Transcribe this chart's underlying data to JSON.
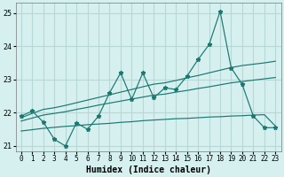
{
  "xlabel": "Humidex (Indice chaleur)",
  "background_color": "#d6efef",
  "grid_color": "#b8d8d8",
  "line_color": "#1a7870",
  "xlim": [
    -0.5,
    23.5
  ],
  "ylim": [
    20.85,
    25.3
  ],
  "yticks": [
    21,
    22,
    23,
    24,
    25
  ],
  "xticks": [
    0,
    1,
    2,
    3,
    4,
    5,
    6,
    7,
    8,
    9,
    10,
    11,
    12,
    13,
    14,
    15,
    16,
    17,
    18,
    19,
    20,
    21,
    22,
    23
  ],
  "x": [
    0,
    1,
    2,
    3,
    4,
    5,
    6,
    7,
    8,
    9,
    10,
    11,
    12,
    13,
    14,
    15,
    16,
    17,
    18,
    19,
    20,
    21,
    22,
    23
  ],
  "y_main": [
    21.9,
    22.05,
    21.72,
    21.2,
    21.0,
    21.7,
    21.5,
    21.9,
    22.6,
    23.2,
    22.4,
    23.2,
    22.45,
    22.75,
    22.7,
    23.1,
    23.6,
    24.05,
    25.05,
    23.35,
    22.85,
    21.9,
    21.55,
    21.55
  ],
  "y_upper": [
    21.85,
    21.98,
    22.1,
    22.15,
    22.22,
    22.3,
    22.38,
    22.46,
    22.54,
    22.62,
    22.7,
    22.78,
    22.86,
    22.9,
    22.97,
    23.05,
    23.12,
    23.2,
    23.28,
    23.36,
    23.42,
    23.46,
    23.5,
    23.55
  ],
  "y_mid": [
    21.75,
    21.84,
    21.93,
    21.98,
    22.03,
    22.1,
    22.16,
    22.23,
    22.29,
    22.35,
    22.41,
    22.47,
    22.53,
    22.56,
    22.62,
    22.67,
    22.73,
    22.78,
    22.84,
    22.9,
    22.94,
    22.98,
    23.02,
    23.06
  ],
  "y_lower": [
    21.45,
    21.49,
    21.53,
    21.56,
    21.59,
    21.61,
    21.64,
    21.66,
    21.68,
    21.71,
    21.73,
    21.76,
    21.78,
    21.8,
    21.82,
    21.83,
    21.85,
    21.87,
    21.88,
    21.9,
    21.91,
    21.93,
    21.94,
    21.6
  ]
}
